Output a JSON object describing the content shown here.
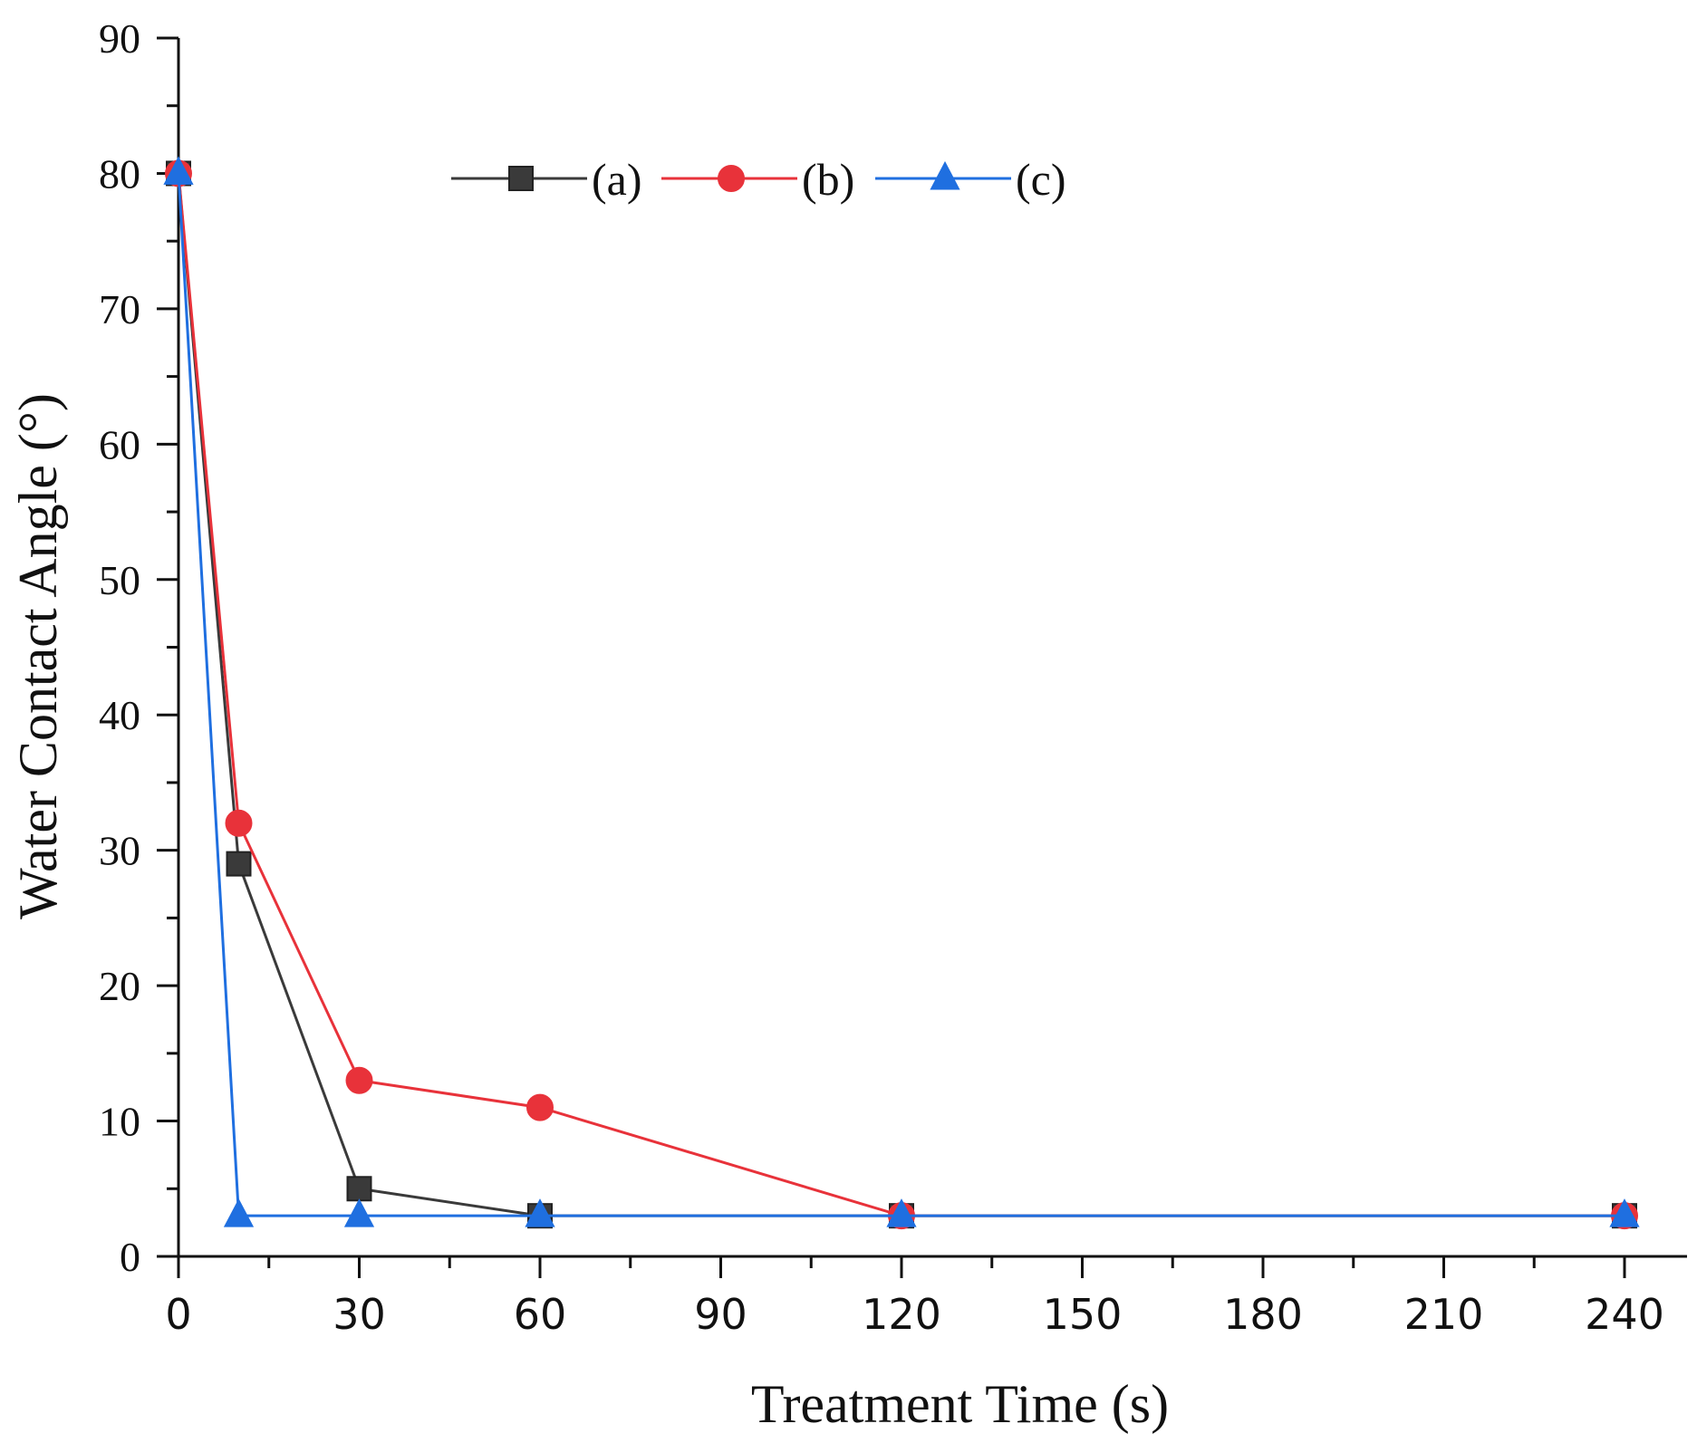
{
  "chart_data": {
    "type": "line",
    "title": "",
    "xlabel": "Treatment Time (s)",
    "ylabel": "Water Contact Angle (°)",
    "xlim": [
      0,
      240
    ],
    "ylim": [
      0,
      90
    ],
    "xticks": [
      0,
      30,
      60,
      90,
      120,
      150,
      180,
      210,
      240
    ],
    "yticks": [
      0,
      10,
      20,
      30,
      40,
      50,
      60,
      70,
      80,
      90
    ],
    "x_minor_step": 15,
    "y_minor_step": 5,
    "grid": false,
    "legend_position": "top-center",
    "series": [
      {
        "name": "(a)",
        "color": "#3a3a3a",
        "marker": "square",
        "x": [
          0,
          10,
          30,
          60,
          120,
          240
        ],
        "values": [
          80,
          29,
          5,
          3,
          3,
          3
        ]
      },
      {
        "name": "(b)",
        "color": "#e8323a",
        "marker": "circle",
        "x": [
          0,
          10,
          30,
          60,
          120,
          240
        ],
        "values": [
          80,
          32,
          13,
          11,
          3,
          3
        ]
      },
      {
        "name": "(c)",
        "color": "#1f6fe0",
        "marker": "triangle",
        "x": [
          0,
          10,
          30,
          60,
          120,
          240
        ],
        "values": [
          80,
          3,
          3,
          3,
          3,
          3
        ]
      }
    ]
  }
}
